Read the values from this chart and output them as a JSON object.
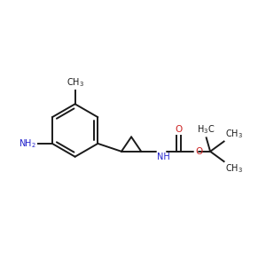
{
  "background_color": "#ffffff",
  "bond_color": "#1a1a1a",
  "nitrogen_color": "#2222cc",
  "oxygen_color": "#cc2222",
  "carbon_color": "#1a1a1a",
  "figsize": [
    3.0,
    3.0
  ],
  "dpi": 100,
  "xlim": [
    0,
    10
  ],
  "ylim": [
    1,
    9
  ]
}
